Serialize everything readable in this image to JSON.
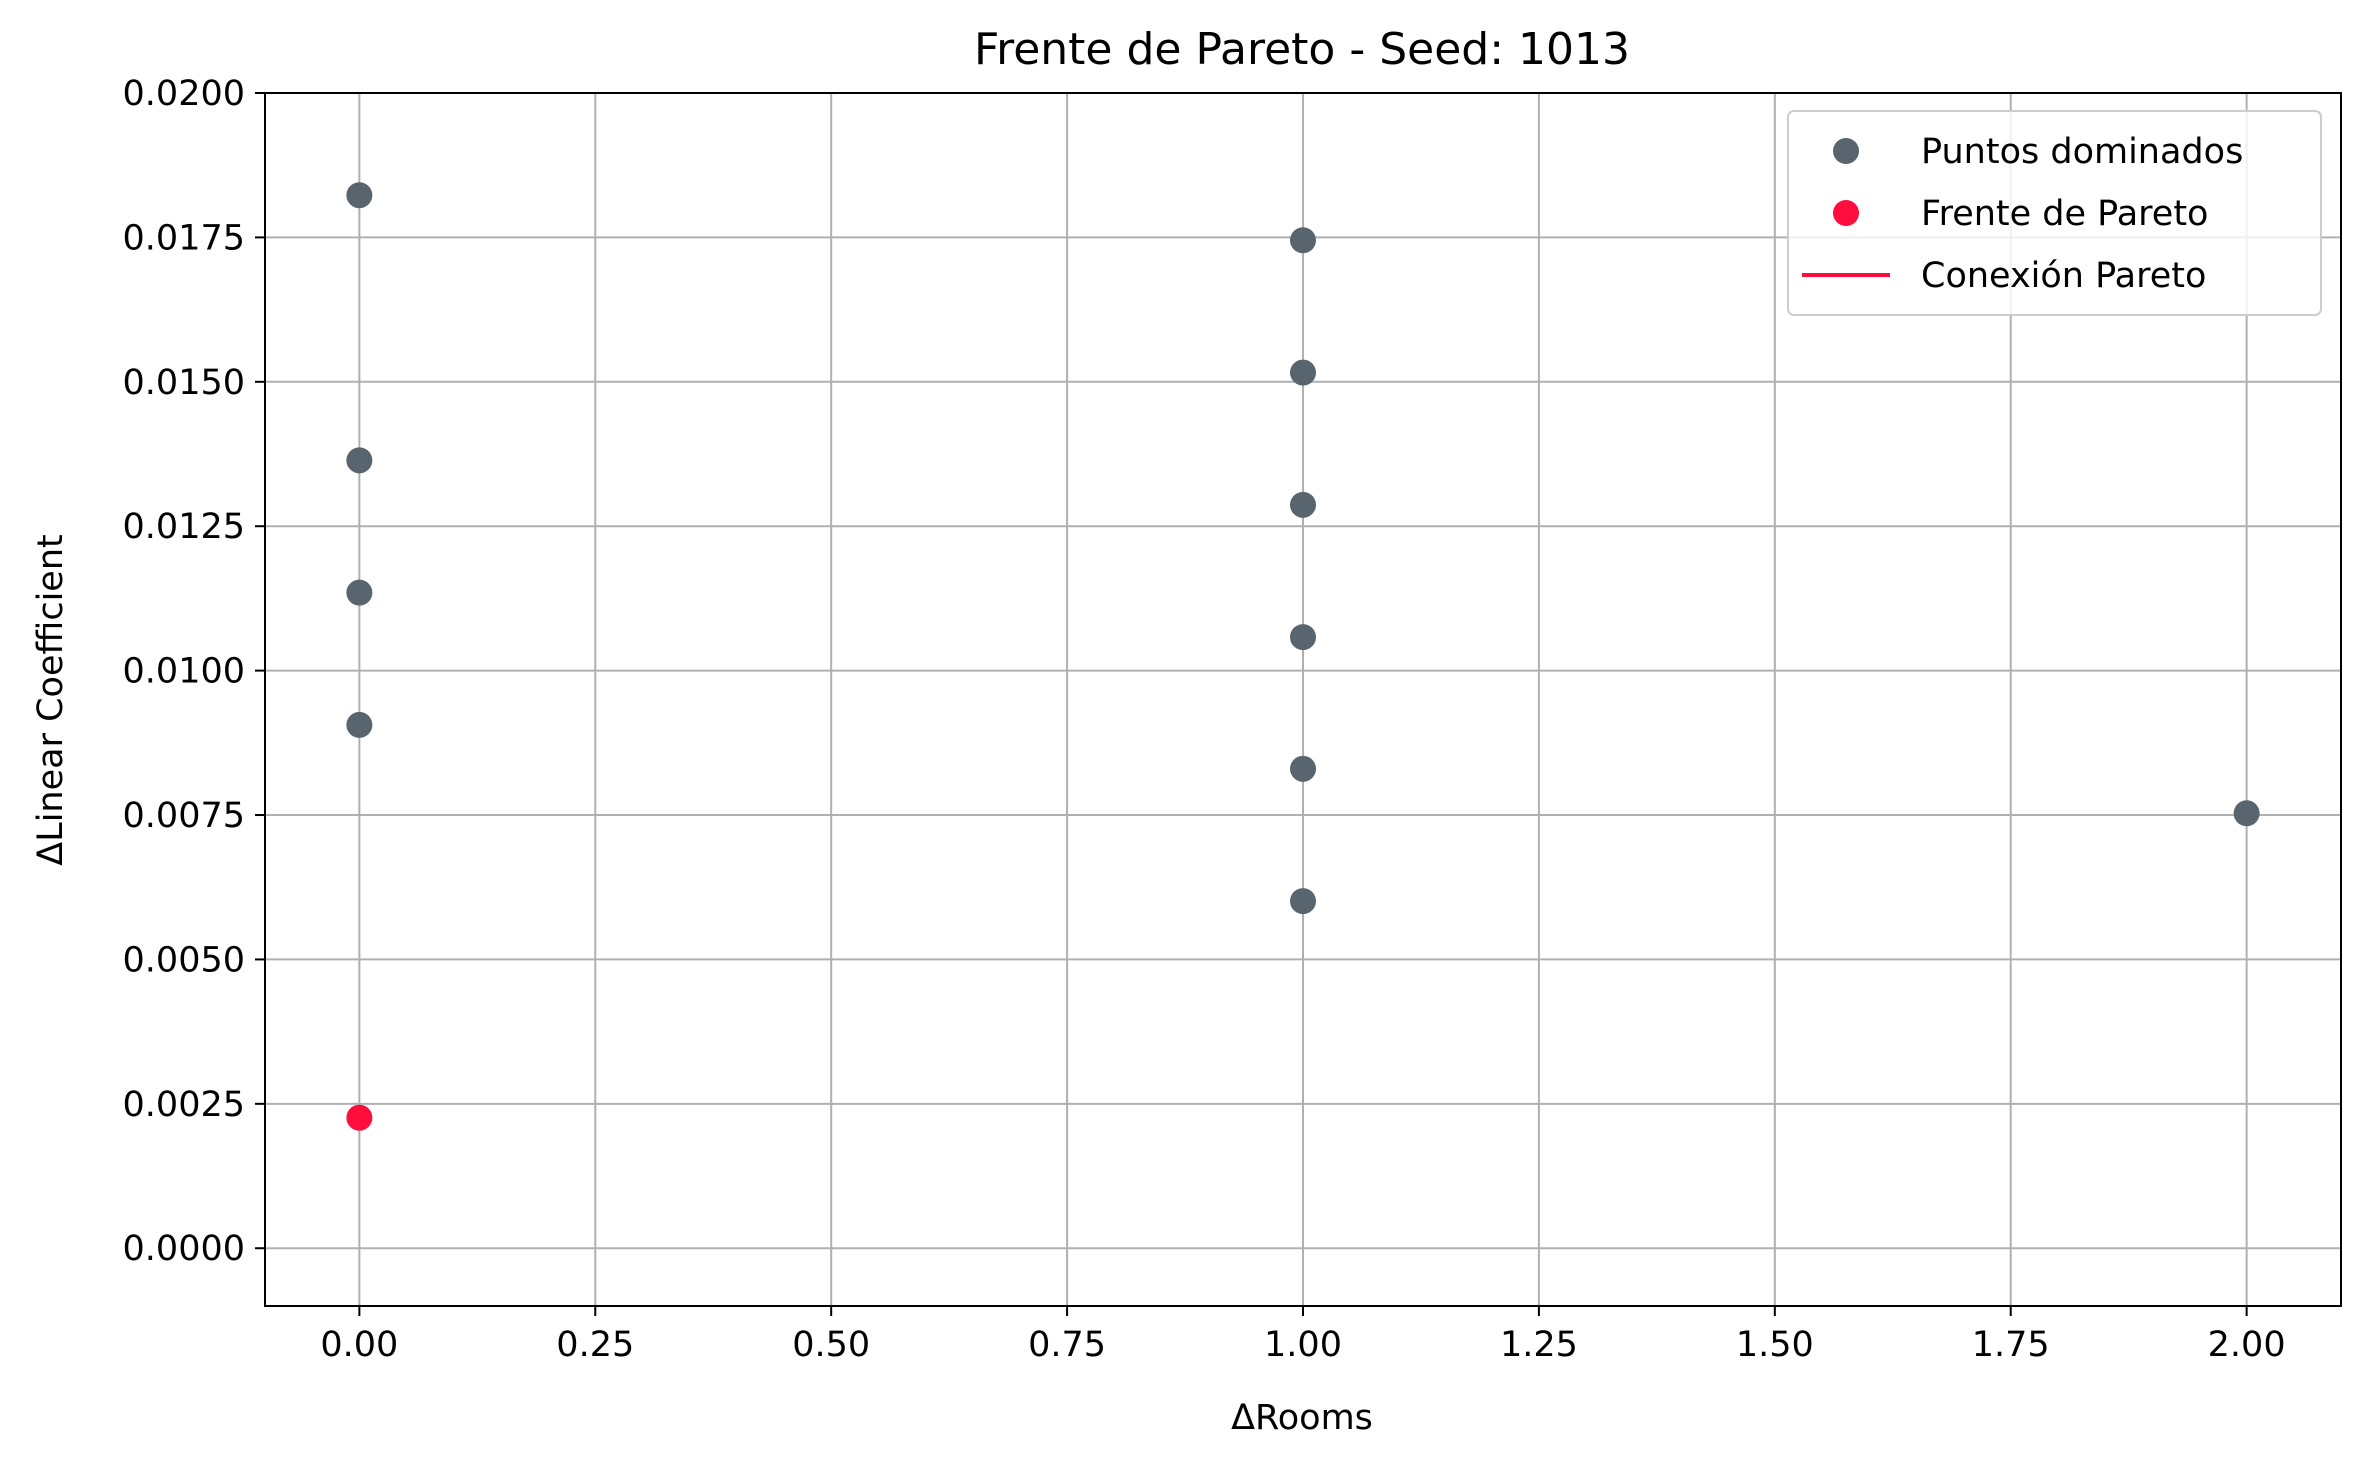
{
  "chart_data": {
    "type": "scatter",
    "title": "Frente de Pareto - Seed: 1013",
    "xlabel": "ΔRooms",
    "ylabel": "ΔLinear Coefficient",
    "xlim": [
      -0.1,
      2.1
    ],
    "ylim": [
      -0.001,
      0.02
    ],
    "grid": true,
    "legend_position": "top-right",
    "x_ticks": [
      0.0,
      0.25,
      0.5,
      0.75,
      1.0,
      1.25,
      1.5,
      1.75,
      2.0
    ],
    "x_tick_labels": [
      "0.00",
      "0.25",
      "0.50",
      "0.75",
      "1.00",
      "1.25",
      "1.50",
      "1.75",
      "2.00"
    ],
    "y_ticks": [
      0.0,
      0.0025,
      0.005,
      0.0075,
      0.01,
      0.0125,
      0.015,
      0.0175,
      0.02
    ],
    "y_tick_labels": [
      "0.0000",
      "0.0025",
      "0.0050",
      "0.0075",
      "0.0100",
      "0.0125",
      "0.0150",
      "0.0175",
      "0.0200"
    ],
    "series": [
      {
        "name": "Puntos dominados",
        "kind": "scatter",
        "color": "#58656e",
        "points": [
          {
            "x": 0,
            "y": 0.01823
          },
          {
            "x": 0,
            "y": 0.01364
          },
          {
            "x": 0,
            "y": 0.01135
          },
          {
            "x": 0,
            "y": 0.00906
          },
          {
            "x": 1,
            "y": 0.01745
          },
          {
            "x": 1,
            "y": 0.01516
          },
          {
            "x": 1,
            "y": 0.01287
          },
          {
            "x": 1,
            "y": 0.01058
          },
          {
            "x": 1,
            "y": 0.0083
          },
          {
            "x": 1,
            "y": 0.00601
          },
          {
            "x": 2,
            "y": 0.00753
          }
        ]
      },
      {
        "name": "Frente de Pareto",
        "kind": "scatter",
        "color": "#ff0d3d",
        "points": [
          {
            "x": 0,
            "y": 0.00226
          }
        ]
      },
      {
        "name": "Conexión Pareto",
        "kind": "line",
        "color": "#ff0d3d",
        "points": [
          {
            "x": 0,
            "y": 0.00226
          }
        ]
      }
    ]
  }
}
